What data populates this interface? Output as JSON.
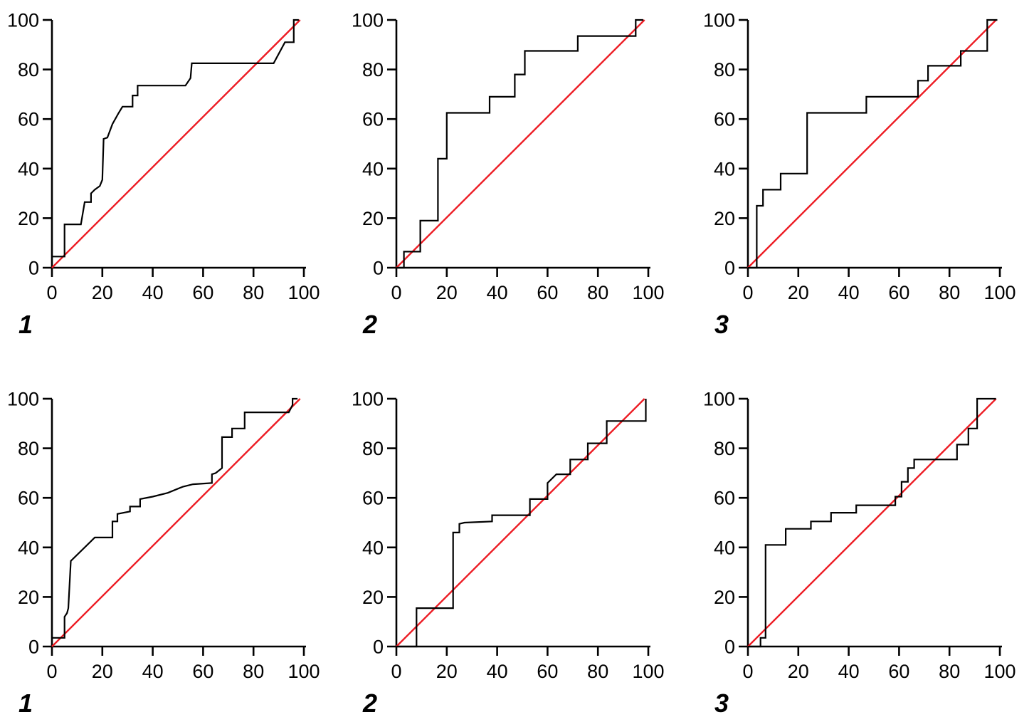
{
  "figure": {
    "background": "#ffffff",
    "axis_color": "#000000",
    "curve_color": "#000000",
    "diagonal_color": "#ed1c24",
    "grid": "off",
    "legend": "none"
  },
  "chart_data": [
    {
      "type": "line",
      "panel_label": "1",
      "position": "top-left",
      "title": "",
      "xlabel": "",
      "ylabel": "",
      "xlim": [
        0,
        100
      ],
      "ylim": [
        0,
        100
      ],
      "x_ticks": [
        "0",
        "20",
        "40",
        "60",
        "80",
        "100"
      ],
      "y_ticks": [
        "0",
        "20",
        "40",
        "60",
        "80",
        "100"
      ],
      "series": [
        {
          "name": "roc-curve",
          "color": "#000000",
          "points": [
            [
              0,
              4.5
            ],
            [
              5,
              4.5
            ],
            [
              5,
              17.5
            ],
            [
              11.5,
              17.5
            ],
            [
              13,
              26.5
            ],
            [
              15.5,
              26.5
            ],
            [
              15.5,
              30
            ],
            [
              17,
              31.5
            ],
            [
              19,
              33
            ],
            [
              20,
              35.5
            ],
            [
              20.5,
              52
            ],
            [
              22,
              52.5
            ],
            [
              24,
              58
            ],
            [
              26.5,
              62.5
            ],
            [
              28,
              65
            ],
            [
              32,
              65
            ],
            [
              32,
              69.5
            ],
            [
              34,
              69.5
            ],
            [
              34,
              73.5
            ],
            [
              53,
              73.5
            ],
            [
              55,
              76.5
            ],
            [
              55.5,
              82.5
            ],
            [
              88,
              82.5
            ],
            [
              92.5,
              91
            ],
            [
              96,
              91
            ],
            [
              96,
              100
            ],
            [
              98,
              100
            ]
          ]
        },
        {
          "name": "chance-diagonal",
          "color": "#ed1c24",
          "points": [
            [
              0,
              0
            ],
            [
              98.5,
              100
            ]
          ]
        }
      ]
    },
    {
      "type": "line",
      "panel_label": "2",
      "position": "top-middle",
      "title": "",
      "xlabel": "",
      "ylabel": "",
      "xlim": [
        0,
        100
      ],
      "ylim": [
        0,
        100
      ],
      "x_ticks": [
        "0",
        "20",
        "40",
        "60",
        "80",
        "100"
      ],
      "y_ticks": [
        "0",
        "20",
        "40",
        "60",
        "80",
        "100"
      ],
      "series": [
        {
          "name": "roc-curve",
          "color": "#000000",
          "points": [
            [
              0,
              0
            ],
            [
              3,
              0
            ],
            [
              3,
              6.5
            ],
            [
              9.5,
              6.5
            ],
            [
              9.5,
              19
            ],
            [
              16.5,
              19
            ],
            [
              16.5,
              44
            ],
            [
              20,
              44
            ],
            [
              20,
              62.5
            ],
            [
              37,
              62.5
            ],
            [
              37,
              69
            ],
            [
              47,
              69
            ],
            [
              47,
              78
            ],
            [
              51,
              78
            ],
            [
              51,
              87.5
            ],
            [
              72,
              87.5
            ],
            [
              72,
              93.5
            ],
            [
              95,
              93.5
            ],
            [
              95,
              100
            ],
            [
              98,
              100
            ]
          ]
        },
        {
          "name": "chance-diagonal",
          "color": "#ed1c24",
          "points": [
            [
              0,
              0
            ],
            [
              98.5,
              100
            ]
          ]
        }
      ]
    },
    {
      "type": "line",
      "panel_label": "3",
      "position": "top-right",
      "title": "",
      "xlabel": "",
      "ylabel": "",
      "xlim": [
        0,
        100
      ],
      "ylim": [
        0,
        100
      ],
      "x_ticks": [
        "0",
        "20",
        "40",
        "60",
        "80",
        "100"
      ],
      "y_ticks": [
        "0",
        "20",
        "40",
        "60",
        "80",
        "100"
      ],
      "series": [
        {
          "name": "roc-curve",
          "color": "#000000",
          "points": [
            [
              0,
              0
            ],
            [
              3.5,
              0
            ],
            [
              3.5,
              25
            ],
            [
              6,
              25
            ],
            [
              6,
              31.5
            ],
            [
              13,
              31.5
            ],
            [
              13,
              38
            ],
            [
              23.5,
              38
            ],
            [
              23.5,
              62.5
            ],
            [
              47,
              62.5
            ],
            [
              47,
              69
            ],
            [
              67.5,
              69
            ],
            [
              67.5,
              75.5
            ],
            [
              71.5,
              75.5
            ],
            [
              71.5,
              81.5
            ],
            [
              84.5,
              81.5
            ],
            [
              84.5,
              87.5
            ],
            [
              95,
              87.5
            ],
            [
              95,
              100
            ],
            [
              99,
              100
            ]
          ]
        },
        {
          "name": "chance-diagonal",
          "color": "#ed1c24",
          "points": [
            [
              0,
              0
            ],
            [
              98.5,
              100
            ]
          ]
        }
      ]
    },
    {
      "type": "line",
      "panel_label": "1",
      "position": "bottom-left",
      "title": "",
      "xlabel": "",
      "ylabel": "",
      "xlim": [
        0,
        100
      ],
      "ylim": [
        0,
        100
      ],
      "x_ticks": [
        "0",
        "20",
        "40",
        "60",
        "80",
        "100"
      ],
      "y_ticks": [
        "0",
        "20",
        "40",
        "60",
        "80",
        "100"
      ],
      "series": [
        {
          "name": "roc-curve",
          "color": "#000000",
          "points": [
            [
              0,
              3.5
            ],
            [
              5,
              3.5
            ],
            [
              5,
              12
            ],
            [
              6,
              13.5
            ],
            [
              6.5,
              15.5
            ],
            [
              7.5,
              34.5
            ],
            [
              17,
              44
            ],
            [
              24,
              44
            ],
            [
              24,
              50.5
            ],
            [
              26,
              50.5
            ],
            [
              26,
              53.5
            ],
            [
              31,
              54.5
            ],
            [
              31,
              56.5
            ],
            [
              35,
              56.5
            ],
            [
              35,
              59.5
            ],
            [
              40,
              60.5
            ],
            [
              46,
              62
            ],
            [
              52,
              64.5
            ],
            [
              56,
              65.5
            ],
            [
              63.5,
              66
            ],
            [
              63.5,
              69.5
            ],
            [
              65,
              70
            ],
            [
              67.5,
              72
            ],
            [
              67.5,
              84.5
            ],
            [
              71.5,
              84.5
            ],
            [
              71.5,
              88
            ],
            [
              76.5,
              88
            ],
            [
              76.5,
              94.5
            ],
            [
              94,
              94.5
            ],
            [
              95.5,
              97.5
            ],
            [
              95.5,
              100
            ],
            [
              97.5,
              100
            ]
          ]
        },
        {
          "name": "chance-diagonal",
          "color": "#ed1c24",
          "points": [
            [
              0,
              0
            ],
            [
              98.5,
              100
            ]
          ]
        }
      ]
    },
    {
      "type": "line",
      "panel_label": "2",
      "position": "bottom-middle",
      "title": "",
      "xlabel": "",
      "ylabel": "",
      "xlim": [
        0,
        100
      ],
      "ylim": [
        0,
        100
      ],
      "x_ticks": [
        "0",
        "20",
        "40",
        "60",
        "80",
        "100"
      ],
      "y_ticks": [
        "0",
        "20",
        "40",
        "60",
        "80",
        "100"
      ],
      "series": [
        {
          "name": "roc-curve",
          "color": "#000000",
          "points": [
            [
              0,
              0
            ],
            [
              8,
              0
            ],
            [
              8,
              15.5
            ],
            [
              22.5,
              15.5
            ],
            [
              22.5,
              46
            ],
            [
              25,
              46
            ],
            [
              25,
              49.5
            ],
            [
              27,
              50
            ],
            [
              38,
              50.5
            ],
            [
              38,
              53
            ],
            [
              53,
              53
            ],
            [
              53,
              59.5
            ],
            [
              60,
              59.5
            ],
            [
              60,
              66
            ],
            [
              63.5,
              69.5
            ],
            [
              69,
              69.5
            ],
            [
              69,
              75.5
            ],
            [
              76,
              75.5
            ],
            [
              76,
              82
            ],
            [
              83.5,
              82
            ],
            [
              83.5,
              91
            ],
            [
              99,
              91
            ],
            [
              99,
              100
            ]
          ]
        },
        {
          "name": "chance-diagonal",
          "color": "#ed1c24",
          "points": [
            [
              0,
              0
            ],
            [
              98.5,
              100
            ]
          ]
        }
      ]
    },
    {
      "type": "line",
      "panel_label": "3",
      "position": "bottom-right",
      "title": "",
      "xlabel": "",
      "ylabel": "",
      "xlim": [
        0,
        100
      ],
      "ylim": [
        0,
        100
      ],
      "x_ticks": [
        "0",
        "20",
        "40",
        "60",
        "80",
        "100"
      ],
      "y_ticks": [
        "0",
        "20",
        "40",
        "60",
        "80",
        "100"
      ],
      "series": [
        {
          "name": "roc-curve",
          "color": "#000000",
          "points": [
            [
              0,
              0
            ],
            [
              5,
              0
            ],
            [
              5,
              3.5
            ],
            [
              7,
              3.5
            ],
            [
              7,
              41
            ],
            [
              15,
              41
            ],
            [
              15,
              47.5
            ],
            [
              25,
              47.5
            ],
            [
              25,
              50.5
            ],
            [
              33,
              50.5
            ],
            [
              33,
              54
            ],
            [
              43,
              54
            ],
            [
              43,
              57
            ],
            [
              58.5,
              57
            ],
            [
              58.5,
              60.5
            ],
            [
              61,
              60.5
            ],
            [
              61,
              66.5
            ],
            [
              63.5,
              66.5
            ],
            [
              63.5,
              72
            ],
            [
              66,
              72
            ],
            [
              66,
              75.5
            ],
            [
              83,
              75.5
            ],
            [
              83,
              81.5
            ],
            [
              87.5,
              81.5
            ],
            [
              87.5,
              88
            ],
            [
              91,
              88
            ],
            [
              91,
              100
            ],
            [
              98.5,
              100
            ]
          ]
        },
        {
          "name": "chance-diagonal",
          "color": "#ed1c24",
          "points": [
            [
              0,
              0
            ],
            [
              98.5,
              100
            ]
          ]
        }
      ]
    }
  ]
}
